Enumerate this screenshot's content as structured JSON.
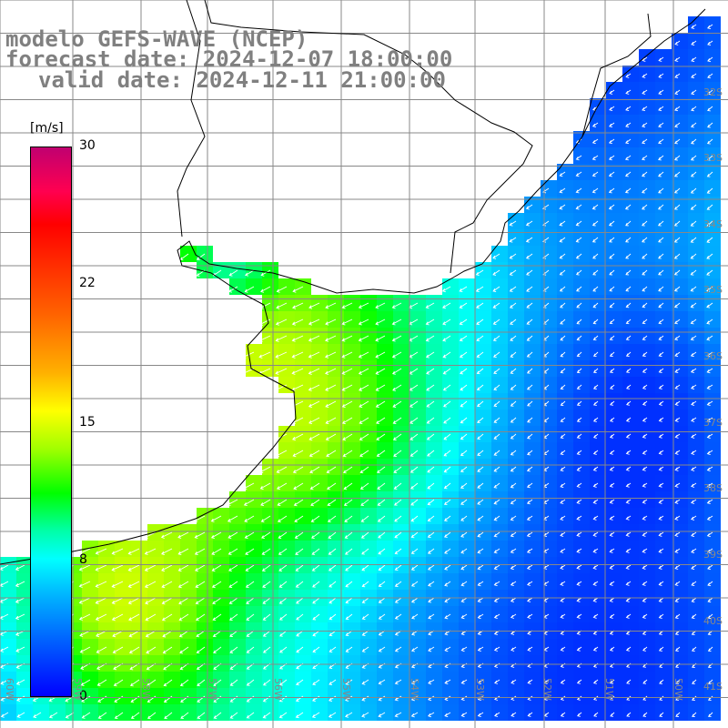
{
  "header": {
    "title": "modelo GEFS-WAVE (NCEP)",
    "forecast_date": "forecast date: 2024-12-07 18:00:00",
    "valid_date": "valid date: 2024-12-11 21:00:00"
  },
  "colorbar": {
    "unit": "[m/s]",
    "ticks": [
      "30",
      "22",
      "15",
      "8",
      "0"
    ],
    "colors": [
      "#c00070",
      "#ff0000",
      "#ffff00",
      "#00ff00",
      "#00ffff",
      "#0000ff"
    ]
  },
  "grid": {
    "lat_labels": [
      "32S",
      "33S",
      "34S",
      "35S",
      "36S",
      "37S",
      "38S",
      "39S",
      "40S",
      "41S"
    ],
    "lon_labels": [
      "60W",
      "59W",
      "58W",
      "57W",
      "56W",
      "55W",
      "54W",
      "53W",
      "52W",
      "51W",
      "50W"
    ]
  },
  "colors": {
    "land": "#ffffff",
    "coast": "#000000",
    "gridline": "#888888"
  }
}
